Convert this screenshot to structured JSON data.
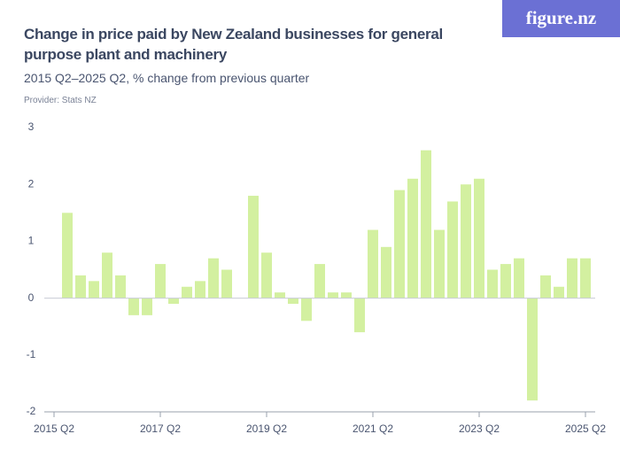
{
  "chart_data": {
    "type": "bar",
    "title": "Change in price paid by New Zealand businesses for general purpose plant and machinery",
    "subtitle": "2015 Q2–2025 Q2, % change from previous quarter",
    "provider": "Provider: Stats NZ",
    "logo": "figure.nz",
    "color": "#d3f0a0",
    "categories": [
      "2015 Q2",
      null,
      null,
      null,
      null,
      null,
      null,
      null,
      "2017 Q2",
      null,
      null,
      null,
      null,
      null,
      null,
      null,
      "2019 Q2",
      null,
      null,
      null,
      null,
      null,
      null,
      null,
      "2021 Q2",
      null,
      null,
      null,
      null,
      null,
      null,
      null,
      "2023 Q2",
      null,
      null,
      null,
      null,
      null,
      null,
      null,
      "2025 Q2"
    ],
    "values": [
      null,
      1.5,
      0.4,
      0.3,
      0.8,
      0.4,
      -0.3,
      -0.3,
      0.6,
      -0.1,
      0.2,
      0.3,
      0.7,
      0.5,
      0,
      1.8,
      0.8,
      0.1,
      -0.1,
      -0.4,
      0.6,
      0.1,
      0.1,
      -0.6,
      1.2,
      0.9,
      1.9,
      2.1,
      2.6,
      1.2,
      1.7,
      2.0,
      2.1,
      0.5,
      0.6,
      0.7,
      -1.8,
      0.4,
      0.2,
      0.7,
      0.7
    ],
    "ylim": [
      -2,
      3
    ],
    "yticks": [
      -2,
      -1,
      0,
      1,
      2,
      3
    ]
  }
}
